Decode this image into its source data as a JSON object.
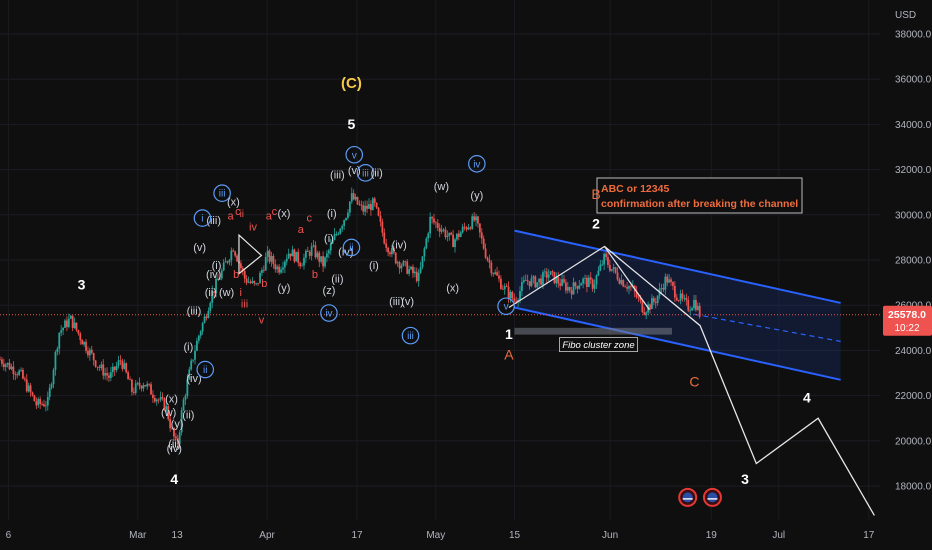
{
  "chart_data": {
    "type": "candlestick",
    "currency": "USD",
    "y_range": [
      16500,
      39500
    ],
    "y_ticks": [
      {
        "v": 18000,
        "label": "18000.0"
      },
      {
        "v": 20000,
        "label": "20000.0"
      },
      {
        "v": 22000,
        "label": "22000.0"
      },
      {
        "v": 24000,
        "label": "24000.0"
      },
      {
        "v": 26000,
        "label": "26000.0"
      },
      {
        "v": 28000,
        "label": "28000.0"
      },
      {
        "v": 30000,
        "label": "30000.0"
      },
      {
        "v": 32000,
        "label": "32000.0"
      },
      {
        "v": 34000,
        "label": "34000.0"
      },
      {
        "v": 36000,
        "label": "36000.0"
      },
      {
        "v": 38000,
        "label": "38000.0"
      }
    ],
    "x_ticks": [
      {
        "d": 0,
        "label": "6"
      },
      {
        "d": 23,
        "label": "Mar"
      },
      {
        "d": 30,
        "label": "13"
      },
      {
        "d": 46,
        "label": "Apr"
      },
      {
        "d": 62,
        "label": "17"
      },
      {
        "d": 76,
        "label": "May"
      },
      {
        "d": 90,
        "label": "15"
      },
      {
        "d": 107,
        "label": "Jun"
      },
      {
        "d": 125,
        "label": "19"
      },
      {
        "d": 137,
        "label": "Jul"
      },
      {
        "d": 153,
        "label": "17"
      }
    ],
    "x_range_days": [
      -1.5,
      155
    ],
    "last_price": {
      "value": 25578.0,
      "label": "25578.0",
      "countdown": "10:22"
    },
    "price_path": [
      [
        -1.5,
        23600
      ],
      [
        2,
        23000
      ],
      [
        5,
        21600
      ],
      [
        7,
        21700
      ],
      [
        9,
        24800
      ],
      [
        11,
        25400
      ],
      [
        13,
        24500
      ],
      [
        16,
        23300
      ],
      [
        18,
        22800
      ],
      [
        20,
        23600
      ],
      [
        22,
        22200
      ],
      [
        24,
        22600
      ],
      [
        26,
        22000
      ],
      [
        28,
        21500
      ],
      [
        29,
        20500
      ],
      [
        30,
        19700
      ],
      [
        31,
        21600
      ],
      [
        32,
        22800
      ],
      [
        33,
        23900
      ],
      [
        34,
        24800
      ],
      [
        35,
        25500
      ],
      [
        36,
        26400
      ],
      [
        38,
        27500
      ],
      [
        40,
        28600
      ],
      [
        42,
        27200
      ],
      [
        44,
        26800
      ],
      [
        46,
        28200
      ],
      [
        48,
        27600
      ],
      [
        50,
        28400
      ],
      [
        52,
        27900
      ],
      [
        54,
        28500
      ],
      [
        56,
        27800
      ],
      [
        58,
        29000
      ],
      [
        60,
        30000
      ],
      [
        61,
        30800
      ],
      [
        63,
        30200
      ],
      [
        65,
        30500
      ],
      [
        67,
        28800
      ],
      [
        69,
        28000
      ],
      [
        71,
        27600
      ],
      [
        73,
        27200
      ],
      [
        75,
        29800
      ],
      [
        77,
        29400
      ],
      [
        79,
        28800
      ],
      [
        81,
        29400
      ],
      [
        83,
        29800
      ],
      [
        85,
        28200
      ],
      [
        86,
        27600
      ],
      [
        88,
        26800
      ],
      [
        90,
        26200
      ],
      [
        92,
        27100
      ],
      [
        94,
        27000
      ],
      [
        96,
        27400
      ],
      [
        98,
        27000
      ],
      [
        100,
        26700
      ],
      [
        102,
        27100
      ],
      [
        104,
        26900
      ],
      [
        106,
        28100
      ],
      [
        107,
        27700
      ],
      [
        109,
        27100
      ],
      [
        111,
        26700
      ],
      [
        113,
        25800
      ],
      [
        115,
        26200
      ],
      [
        117,
        27200
      ],
      [
        119,
        26400
      ],
      [
        121,
        25900
      ],
      [
        122,
        26200
      ],
      [
        123,
        25578
      ]
    ],
    "channel": {
      "upper": [
        [
          90,
          29300
        ],
        [
          148,
          26100
        ]
      ],
      "lower": [
        [
          90,
          25900
        ],
        [
          148,
          22700
        ]
      ],
      "mid_dashed": [
        [
          122,
          25600
        ],
        [
          148,
          24400
        ]
      ]
    },
    "projection_path": [
      [
        106,
        28600
      ],
      [
        123,
        25100
      ],
      [
        133,
        19000
      ],
      [
        144,
        21000
      ],
      [
        154,
        16700
      ]
    ],
    "bc_path": [
      [
        89,
        25900
      ],
      [
        106,
        28600
      ],
      [
        114,
        25800
      ]
    ],
    "fibo_zone": {
      "from_day": 90,
      "to_day": 118,
      "value_top": 25000,
      "value_bottom": 24700,
      "label": "Fibo cluster zone"
    },
    "annotation_box": {
      "line1": "ABC or 12345",
      "line2": "confirmation after breaking the channel"
    },
    "triangle": [
      [
        41,
        29100
      ],
      [
        45,
        28200
      ],
      [
        41,
        27400
      ]
    ],
    "wave_labels": [
      {
        "t": "3",
        "d": 13,
        "v": 26700,
        "c": "#ffffff",
        "s": 14,
        "b": true
      },
      {
        "t": "4",
        "d": 29.5,
        "v": 18100,
        "c": "#ffffff",
        "s": 14,
        "b": true
      },
      {
        "t": "(iv)",
        "d": 29.5,
        "v": 19500,
        "c": "#d1d4dc",
        "s": 11
      },
      {
        "t": "(ii)",
        "d": 29.5,
        "v": 19700,
        "c": "#d1d4dc",
        "s": 11
      },
      {
        "t": "(x)",
        "d": 29,
        "v": 21700,
        "c": "#d1d4dc",
        "s": 11
      },
      {
        "t": "(w)",
        "d": 28.5,
        "v": 21100,
        "c": "#d1d4dc",
        "s": 11
      },
      {
        "t": "(y)",
        "d": 30,
        "v": 20600,
        "c": "#d1d4dc",
        "s": 11
      },
      {
        "t": "(ii)",
        "d": 32,
        "v": 21000,
        "c": "#d1d4dc",
        "s": 11
      },
      {
        "t": "(iv)",
        "d": 33,
        "v": 22600,
        "c": "#d1d4dc",
        "s": 11
      },
      {
        "t": "ii",
        "d": 35,
        "v": 23000,
        "c": "#5b9cf6",
        "s": 10,
        "circle": true
      },
      {
        "t": "(i)",
        "d": 32,
        "v": 24000,
        "c": "#d1d4dc",
        "s": 11
      },
      {
        "t": "(iii)",
        "d": 33,
        "v": 25600,
        "c": "#d1d4dc",
        "s": 11
      },
      {
        "t": "(ii)",
        "d": 36,
        "v": 26400,
        "c": "#d1d4dc",
        "s": 11
      },
      {
        "t": "(iv)",
        "d": 36.5,
        "v": 27200,
        "c": "#d1d4dc",
        "s": 11
      },
      {
        "t": "(i)",
        "d": 37,
        "v": 27600,
        "c": "#d1d4dc",
        "s": 11
      },
      {
        "t": "(v)",
        "d": 34,
        "v": 28400,
        "c": "#d1d4dc",
        "s": 11
      },
      {
        "t": "(iii)",
        "d": 36.5,
        "v": 29600,
        "c": "#d1d4dc",
        "s": 11
      },
      {
        "t": "i",
        "d": 34.5,
        "v": 29700,
        "c": "#5b9cf6",
        "s": 10,
        "circle": true
      },
      {
        "t": "iii",
        "d": 38,
        "v": 30800,
        "c": "#5b9cf6",
        "s": 10,
        "circle": true
      },
      {
        "t": "(x)",
        "d": 40,
        "v": 30400,
        "c": "#d1d4dc",
        "s": 11
      },
      {
        "t": "(w)",
        "d": 38.8,
        "v": 26400,
        "c": "#d1d4dc",
        "s": 11
      },
      {
        "t": "a",
        "d": 39.5,
        "v": 29800,
        "c": "#f05350",
        "s": 11
      },
      {
        "t": "c",
        "d": 40.8,
        "v": 30000,
        "c": "#f05350",
        "s": 11
      },
      {
        "t": "ii",
        "d": 41.5,
        "v": 29900,
        "c": "#f05350",
        "s": 10
      },
      {
        "t": "iv",
        "d": 43.5,
        "v": 29300,
        "c": "#f05350",
        "s": 11
      },
      {
        "t": "b",
        "d": 40.5,
        "v": 27200,
        "c": "#f05350",
        "s": 11
      },
      {
        "t": "i",
        "d": 41.3,
        "v": 26400,
        "c": "#f05350",
        "s": 11
      },
      {
        "t": "iii",
        "d": 42,
        "v": 25900,
        "c": "#f05350",
        "s": 11
      },
      {
        "t": "v",
        "d": 45,
        "v": 25200,
        "c": "#f05350",
        "s": 11
      },
      {
        "t": "b",
        "d": 45.5,
        "v": 26800,
        "c": "#f05350",
        "s": 11
      },
      {
        "t": "a",
        "d": 46.3,
        "v": 29800,
        "c": "#f05350",
        "s": 11
      },
      {
        "t": "c",
        "d": 47.3,
        "v": 30000,
        "c": "#f05350",
        "s": 11
      },
      {
        "t": "(x)",
        "d": 49,
        "v": 29900,
        "c": "#d1d4dc",
        "s": 11
      },
      {
        "t": "(y)",
        "d": 49,
        "v": 26600,
        "c": "#d1d4dc",
        "s": 11
      },
      {
        "t": "a",
        "d": 52,
        "v": 29200,
        "c": "#f05350",
        "s": 11
      },
      {
        "t": "c",
        "d": 53.5,
        "v": 29700,
        "c": "#f05350",
        "s": 11
      },
      {
        "t": "b",
        "d": 54.5,
        "v": 27200,
        "c": "#f05350",
        "s": 11
      },
      {
        "t": "(C)",
        "d": 61,
        "v": 35600,
        "c": "#f7c948",
        "s": 15,
        "b": true
      },
      {
        "t": "5",
        "d": 61,
        "v": 33800,
        "c": "#ffffff",
        "s": 14,
        "b": true
      },
      {
        "t": "v",
        "d": 61.5,
        "v": 32500,
        "c": "#5b9cf6",
        "s": 10,
        "circle": true
      },
      {
        "t": "(v)",
        "d": 61.5,
        "v": 31800,
        "c": "#d1d4dc",
        "s": 11
      },
      {
        "t": "iii",
        "d": 63.5,
        "v": 31700,
        "c": "#5b9cf6",
        "s": 10,
        "circle": true
      },
      {
        "t": "(iii)",
        "d": 58.5,
        "v": 31600,
        "c": "#d1d4dc",
        "s": 11
      },
      {
        "t": "(ii)",
        "d": 65.5,
        "v": 31700,
        "c": "#d1d4dc",
        "s": 11
      },
      {
        "t": "(i)",
        "d": 57.5,
        "v": 29900,
        "c": "#d1d4dc",
        "s": 11
      },
      {
        "t": "(i)",
        "d": 57,
        "v": 28800,
        "c": "#d1d4dc",
        "s": 11
      },
      {
        "t": "(iv)",
        "d": 60,
        "v": 28200,
        "c": "#d1d4dc",
        "s": 11
      },
      {
        "t": "ii",
        "d": 61,
        "v": 28400,
        "c": "#5b9cf6",
        "s": 10,
        "circle": true
      },
      {
        "t": "(ii)",
        "d": 58.5,
        "v": 27000,
        "c": "#d1d4dc",
        "s": 11
      },
      {
        "t": "(z)",
        "d": 57,
        "v": 26500,
        "c": "#d1d4dc",
        "s": 11
      },
      {
        "t": "iv",
        "d": 57,
        "v": 25500,
        "c": "#5b9cf6",
        "s": 10,
        "circle": true
      },
      {
        "t": "(i)",
        "d": 65,
        "v": 27600,
        "c": "#d1d4dc",
        "s": 11
      },
      {
        "t": "(iv)",
        "d": 69.5,
        "v": 28500,
        "c": "#d1d4dc",
        "s": 11
      },
      {
        "t": "(iii)",
        "d": 69,
        "v": 26000,
        "c": "#d1d4dc",
        "s": 11
      },
      {
        "t": "(v)",
        "d": 71,
        "v": 26000,
        "c": "#d1d4dc",
        "s": 11
      },
      {
        "t": "iii",
        "d": 71.5,
        "v": 24500,
        "c": "#5b9cf6",
        "s": 10,
        "circle": true
      },
      {
        "t": "(w)",
        "d": 77,
        "v": 31100,
        "c": "#d1d4dc",
        "s": 11
      },
      {
        "t": "(x)",
        "d": 79,
        "v": 26600,
        "c": "#d1d4dc",
        "s": 11
      },
      {
        "t": "iv",
        "d": 83.3,
        "v": 32100,
        "c": "#5b9cf6",
        "s": 10,
        "circle": true
      },
      {
        "t": "(y)",
        "d": 83.3,
        "v": 30700,
        "c": "#d1d4dc",
        "s": 11
      },
      {
        "t": "v",
        "d": 88.5,
        "v": 25800,
        "c": "#5b9cf6",
        "s": 10,
        "circle": true
      },
      {
        "t": "1",
        "d": 89,
        "v": 24500,
        "c": "#ffffff",
        "s": 14,
        "b": true
      },
      {
        "t": "A",
        "d": 89,
        "v": 23600,
        "c": "#ef6c3d",
        "s": 14
      },
      {
        "t": "B",
        "d": 104.5,
        "v": 30700,
        "c": "#ef6c3d",
        "s": 14
      },
      {
        "t": "2",
        "d": 104.5,
        "v": 29400,
        "c": "#ffffff",
        "s": 14,
        "b": true
      },
      {
        "t": "C",
        "d": 122,
        "v": 22400,
        "c": "#ef6c3d",
        "s": 14
      },
      {
        "t": "3",
        "d": 131,
        "v": 18100,
        "c": "#ffffff",
        "s": 14,
        "b": true
      },
      {
        "t": "4",
        "d": 142,
        "v": 21700,
        "c": "#ffffff",
        "s": 14,
        "b": true
      }
    ],
    "event_markers": [
      {
        "d": 120.8,
        "v": 17500
      },
      {
        "d": 125.2,
        "v": 17500
      }
    ]
  }
}
